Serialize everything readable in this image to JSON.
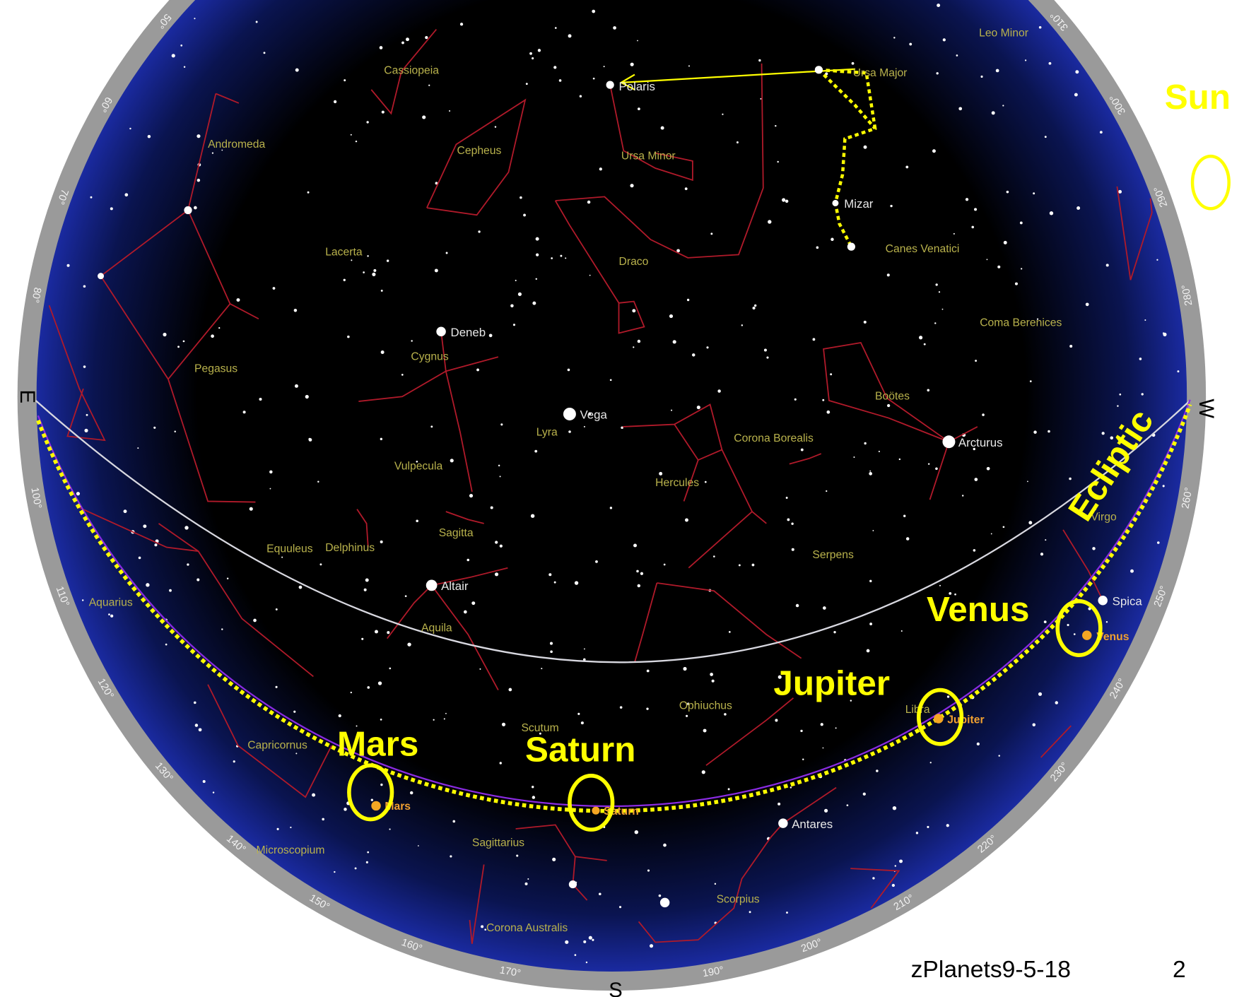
{
  "annotations": {
    "sun": "Sun",
    "ecliptic": "Ecliptic",
    "venus": "Venus",
    "jupiter": "Jupiter",
    "mars": "Mars",
    "saturn": "Saturn"
  },
  "constellations": [
    "Cassiopeia",
    "Andromeda",
    "Cepheus",
    "Ursa Minor",
    "Ursa Major",
    "Leo Minor",
    "Lacerta",
    "Draco",
    "Canes Venatici",
    "Coma Berenices",
    "Pegasus",
    "Cygnus",
    "Boötes",
    "Lyra",
    "Corona Borealis",
    "Vulpecula",
    "Hercules",
    "Sagitta",
    "Virgo",
    "Equuleus",
    "Delphinus",
    "Serpens",
    "Aquila",
    "Aquarius",
    "Ophiuchus",
    "Libra",
    "Scutum",
    "Capricornus",
    "Sagittarius",
    "Microscopium",
    "Scorpius",
    "Corona Australis"
  ],
  "stars": [
    "Deneb",
    "Vega",
    "Altair",
    "Arcturus",
    "Spica",
    "Antares",
    "Mizar",
    "Polaris"
  ],
  "planets": [
    "Venus",
    "Jupiter",
    "Saturn",
    "Mars"
  ],
  "compass": {
    "east": "E",
    "west": "W",
    "south": "S"
  },
  "azimuth_labels": [
    {
      "value": 50,
      "label": "50°"
    },
    {
      "value": 60,
      "label": "60°"
    },
    {
      "value": 70,
      "label": "70°"
    },
    {
      "value": 80,
      "label": "80°"
    },
    {
      "value": 100,
      "label": "100°"
    },
    {
      "value": 110,
      "label": "110°"
    },
    {
      "value": 120,
      "label": "120°"
    },
    {
      "value": 130,
      "label": "130°"
    },
    {
      "value": 140,
      "label": "140°"
    },
    {
      "value": 150,
      "label": "150°"
    },
    {
      "value": 160,
      "label": "160°"
    },
    {
      "value": 170,
      "label": "170°"
    },
    {
      "value": 190,
      "label": "190°"
    },
    {
      "value": 200,
      "label": "200°"
    },
    {
      "value": 210,
      "label": "210°"
    },
    {
      "value": 220,
      "label": "220°"
    },
    {
      "value": 230,
      "label": "230°"
    },
    {
      "value": 240,
      "label": "240°"
    },
    {
      "value": 250,
      "label": "250°"
    },
    {
      "value": 260,
      "label": "260°"
    },
    {
      "value": 280,
      "label": "280°"
    },
    {
      "value": 290,
      "label": "290°"
    },
    {
      "value": 300,
      "label": "300°"
    },
    {
      "value": 310,
      "label": "310°"
    }
  ],
  "footer": {
    "source": "zPlanets9-5-18",
    "page": "2"
  }
}
